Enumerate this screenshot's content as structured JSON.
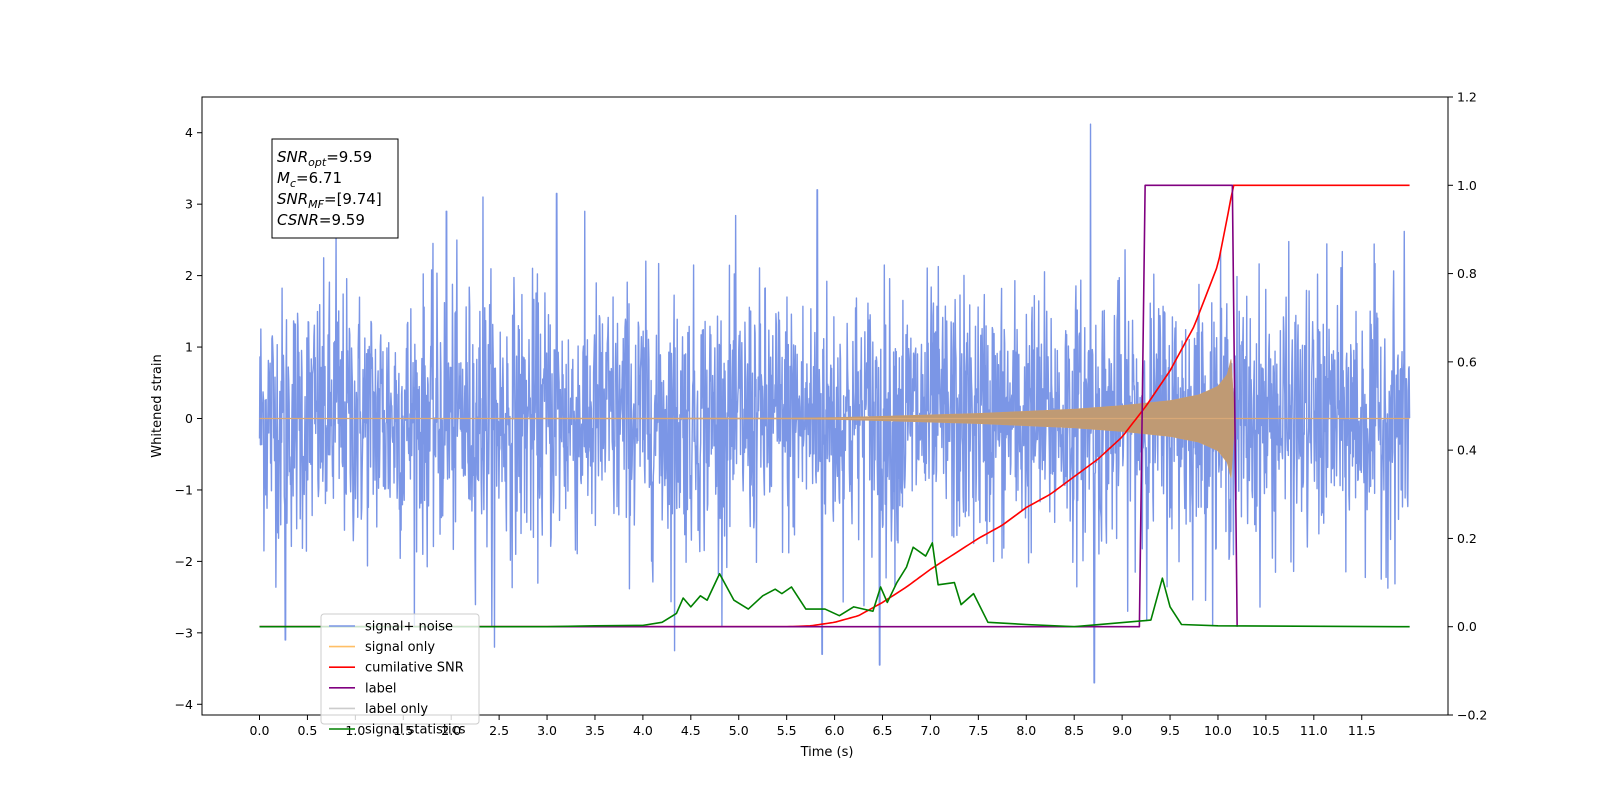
{
  "chart_data": {
    "type": "line",
    "xlabel": "Time (s)",
    "ylabel": "Whitened strain",
    "ylabel_right": "",
    "xlim": [
      -0.6,
      12.4
    ],
    "ylim_left": [
      -4.15,
      4.5
    ],
    "ylim_right": [
      -0.2,
      1.2
    ],
    "x_ticks": [
      0.0,
      0.5,
      1.0,
      1.5,
      2.0,
      2.5,
      3.0,
      3.5,
      4.0,
      4.5,
      5.0,
      5.5,
      6.0,
      6.5,
      7.0,
      7.5,
      8.0,
      8.5,
      9.0,
      9.5,
      10.0,
      10.5,
      11.0,
      11.5
    ],
    "x_tick_labels": [
      "0.0",
      "0.5",
      "1.0",
      "1.5",
      "2.0",
      "2.5",
      "3.0",
      "3.5",
      "4.0",
      "4.5",
      "5.0",
      "5.5",
      "6.0",
      "6.5",
      "7.0",
      "7.5",
      "8.0",
      "8.5",
      "9.0",
      "9.5",
      "10.0",
      "10.5",
      "11.0",
      "11.5"
    ],
    "y_left_ticks": [
      -4,
      -3,
      -2,
      -1,
      0,
      1,
      2,
      3,
      4
    ],
    "y_left_tick_labels": [
      "−4",
      "−3",
      "−2",
      "−1",
      "0",
      "1",
      "2",
      "3",
      "4"
    ],
    "y_right_ticks": [
      -0.2,
      0.0,
      0.2,
      0.4,
      0.6,
      0.8,
      1.0,
      1.2
    ],
    "y_right_tick_labels": [
      "−0.2",
      "0.0",
      "0.2",
      "0.4",
      "0.6",
      "0.8",
      "1.0",
      "1.2"
    ],
    "annotation": {
      "lines": [
        {
          "base": "SNR",
          "sub": "opt",
          "value": "=9.59"
        },
        {
          "base": "M",
          "sub": "c",
          "value": "=6.71"
        },
        {
          "base": "SNR",
          "sub": "MF",
          "value": "=[9.74]"
        },
        {
          "base": "CSNR",
          "sub": "",
          "value": "=9.59"
        }
      ]
    },
    "legend": {
      "position": "lower-left",
      "entries": [
        {
          "label": "signal+ noise",
          "color": "#7b96e6"
        },
        {
          "label": "signal only",
          "color": "#ffbf66"
        },
        {
          "label": "cumilative SNR",
          "color": "#ff0000"
        },
        {
          "label": "label",
          "color": "#800080"
        },
        {
          "label": "label only",
          "color": "#cccccc"
        },
        {
          "label": "signal statistics",
          "color": "#008000"
        }
      ]
    },
    "series": [
      {
        "name": "signal+ noise",
        "axis": "left",
        "color": "#7b96e6",
        "description_values": {
          "x_range": [
            0.0,
            11.999
          ],
          "approx_std": 0.9,
          "min": -3.7,
          "max": 4.12
        },
        "peaks": [
          {
            "x": 0.8,
            "y": 2.6
          },
          {
            "x": 1.95,
            "y": 2.9
          },
          {
            "x": 2.33,
            "y": 3.1
          },
          {
            "x": 3.1,
            "y": 3.15
          },
          {
            "x": 5.82,
            "y": 3.2
          },
          {
            "x": 8.67,
            "y": 4.12
          },
          {
            "x": 8.71,
            "y": -3.7
          },
          {
            "x": 6.47,
            "y": -3.45
          },
          {
            "x": 5.87,
            "y": -3.3
          },
          {
            "x": 4.33,
            "y": -3.25
          },
          {
            "x": 2.45,
            "y": -3.2
          },
          {
            "x": 0.27,
            "y": -3.1
          }
        ]
      },
      {
        "name": "signal only",
        "axis": "left",
        "color": "#ffbf66",
        "envelope": [
          {
            "x": 0.0,
            "y": 0.0
          },
          {
            "x": 5.5,
            "y": 0.005
          },
          {
            "x": 6.0,
            "y": 0.012
          },
          {
            "x": 6.5,
            "y": 0.03
          },
          {
            "x": 7.0,
            "y": 0.05
          },
          {
            "x": 7.5,
            "y": 0.07
          },
          {
            "x": 8.0,
            "y": 0.1
          },
          {
            "x": 8.5,
            "y": 0.13
          },
          {
            "x": 9.0,
            "y": 0.18
          },
          {
            "x": 9.5,
            "y": 0.25
          },
          {
            "x": 9.8,
            "y": 0.33
          },
          {
            "x": 10.0,
            "y": 0.45
          },
          {
            "x": 10.1,
            "y": 0.62
          },
          {
            "x": 10.14,
            "y": 0.85
          },
          {
            "x": 10.17,
            "y": 0.0
          },
          {
            "x": 12.0,
            "y": 0.0
          }
        ]
      },
      {
        "name": "cumilative SNR",
        "axis": "right",
        "color": "#ff0000",
        "points": [
          {
            "x": 0.0,
            "y": 0.0
          },
          {
            "x": 5.5,
            "y": 0.0
          },
          {
            "x": 5.75,
            "y": 0.002
          },
          {
            "x": 6.0,
            "y": 0.01
          },
          {
            "x": 6.25,
            "y": 0.025
          },
          {
            "x": 6.5,
            "y": 0.055
          },
          {
            "x": 6.75,
            "y": 0.09
          },
          {
            "x": 7.0,
            "y": 0.13
          },
          {
            "x": 7.25,
            "y": 0.165
          },
          {
            "x": 7.5,
            "y": 0.2
          },
          {
            "x": 7.75,
            "y": 0.23
          },
          {
            "x": 8.0,
            "y": 0.27
          },
          {
            "x": 8.25,
            "y": 0.3
          },
          {
            "x": 8.5,
            "y": 0.34
          },
          {
            "x": 8.75,
            "y": 0.38
          },
          {
            "x": 9.0,
            "y": 0.43
          },
          {
            "x": 9.25,
            "y": 0.5
          },
          {
            "x": 9.5,
            "y": 0.58
          },
          {
            "x": 9.75,
            "y": 0.68
          },
          {
            "x": 10.0,
            "y": 0.82
          },
          {
            "x": 10.1,
            "y": 0.93
          },
          {
            "x": 10.16,
            "y": 1.0
          },
          {
            "x": 12.0,
            "y": 1.0
          }
        ]
      },
      {
        "name": "label",
        "axis": "right",
        "color": "#800080",
        "points": [
          {
            "x": 0.0,
            "y": 0.0
          },
          {
            "x": 9.18,
            "y": 0.0
          },
          {
            "x": 9.24,
            "y": 1.0
          },
          {
            "x": 10.15,
            "y": 1.0
          },
          {
            "x": 10.2,
            "y": 0.0
          }
        ]
      },
      {
        "name": "signal statistics",
        "axis": "right",
        "color": "#008000",
        "points": [
          {
            "x": 0.0,
            "y": 0.0
          },
          {
            "x": 3.0,
            "y": 0.0
          },
          {
            "x": 3.5,
            "y": 0.002
          },
          {
            "x": 4.0,
            "y": 0.003
          },
          {
            "x": 4.2,
            "y": 0.01
          },
          {
            "x": 4.35,
            "y": 0.03
          },
          {
            "x": 4.42,
            "y": 0.065
          },
          {
            "x": 4.5,
            "y": 0.045
          },
          {
            "x": 4.6,
            "y": 0.07
          },
          {
            "x": 4.67,
            "y": 0.06
          },
          {
            "x": 4.8,
            "y": 0.12
          },
          {
            "x": 4.95,
            "y": 0.06
          },
          {
            "x": 5.1,
            "y": 0.04
          },
          {
            "x": 5.25,
            "y": 0.07
          },
          {
            "x": 5.38,
            "y": 0.085
          },
          {
            "x": 5.45,
            "y": 0.075
          },
          {
            "x": 5.55,
            "y": 0.09
          },
          {
            "x": 5.7,
            "y": 0.04
          },
          {
            "x": 5.9,
            "y": 0.04
          },
          {
            "x": 6.05,
            "y": 0.025
          },
          {
            "x": 6.2,
            "y": 0.045
          },
          {
            "x": 6.4,
            "y": 0.035
          },
          {
            "x": 6.48,
            "y": 0.09
          },
          {
            "x": 6.55,
            "y": 0.055
          },
          {
            "x": 6.65,
            "y": 0.1
          },
          {
            "x": 6.75,
            "y": 0.135
          },
          {
            "x": 6.82,
            "y": 0.18
          },
          {
            "x": 6.95,
            "y": 0.16
          },
          {
            "x": 7.02,
            "y": 0.19
          },
          {
            "x": 7.08,
            "y": 0.095
          },
          {
            "x": 7.25,
            "y": 0.1
          },
          {
            "x": 7.32,
            "y": 0.05
          },
          {
            "x": 7.45,
            "y": 0.075
          },
          {
            "x": 7.6,
            "y": 0.01
          },
          {
            "x": 8.0,
            "y": 0.005
          },
          {
            "x": 8.5,
            "y": 0.0
          },
          {
            "x": 9.3,
            "y": 0.015
          },
          {
            "x": 9.42,
            "y": 0.11
          },
          {
            "x": 9.5,
            "y": 0.045
          },
          {
            "x": 9.62,
            "y": 0.005
          },
          {
            "x": 10.0,
            "y": 0.002
          },
          {
            "x": 12.0,
            "y": 0.0
          }
        ]
      }
    ]
  }
}
